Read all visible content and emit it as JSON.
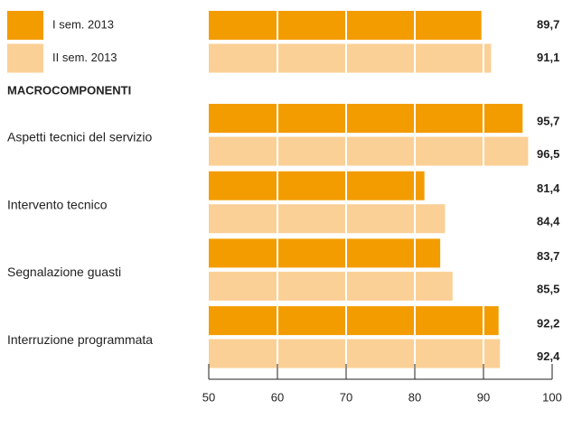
{
  "chart_data": {
    "type": "bar",
    "orientation": "horizontal",
    "section_label": "MACROCOMPONENTI",
    "categories": [
      null,
      "Aspetti tecnici del servizio",
      "Intervento tecnico",
      "Segnalazione guasti",
      "Interruzione programmata"
    ],
    "series": [
      {
        "name": "I sem. 2013",
        "color": "#f39c00",
        "values": [
          89.7,
          95.7,
          81.4,
          83.7,
          92.2
        ],
        "value_labels": [
          "89,7",
          "95,7",
          "81,4",
          "83,7",
          "92,2"
        ]
      },
      {
        "name": "II sem. 2013",
        "color": "#fbd096",
        "values": [
          91.1,
          96.5,
          84.4,
          85.5,
          92.4
        ],
        "value_labels": [
          "91,1",
          "96,5",
          "84,4",
          "85,5",
          "92,4"
        ]
      }
    ],
    "xlim": [
      50,
      100
    ],
    "xticks": [
      50,
      60,
      70,
      80,
      90,
      100
    ],
    "grid": true
  }
}
